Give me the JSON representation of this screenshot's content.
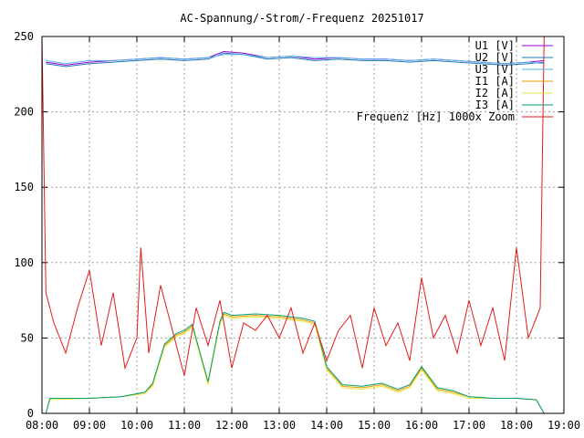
{
  "chart_data": {
    "type": "line",
    "title": "AC-Spannung/-Strom/-Frequenz 20251017",
    "xlabel": "",
    "ylabel": "",
    "xlim": [
      "08:00",
      "19:00"
    ],
    "ylim": [
      0,
      250
    ],
    "x_ticks": [
      "08:00",
      "09:00",
      "10:00",
      "11:00",
      "12:00",
      "13:00",
      "14:00",
      "15:00",
      "16:00",
      "17:00",
      "18:00",
      "19:00"
    ],
    "y_ticks": [
      0,
      50,
      100,
      150,
      200,
      250
    ],
    "grid": true,
    "legend_position": "top-right",
    "series": [
      {
        "name": "U1 [V]",
        "color": "#9400d3",
        "x": [
          "08:05",
          "08:30",
          "09:00",
          "09:30",
          "10:00",
          "10:30",
          "11:00",
          "11:30",
          "11:50",
          "12:15",
          "12:45",
          "13:15",
          "13:45",
          "14:15",
          "14:45",
          "15:15",
          "15:45",
          "16:15",
          "16:45",
          "17:15",
          "17:45",
          "18:15",
          "18:35"
        ],
        "values": [
          233,
          231,
          233,
          234,
          235,
          236,
          235,
          236,
          240,
          239,
          236,
          237,
          235,
          236,
          235,
          235,
          234,
          235,
          234,
          233,
          232,
          233,
          234
        ]
      },
      {
        "name": "U2 [V]",
        "color": "#1e78b4",
        "x": [
          "08:05",
          "08:30",
          "09:00",
          "09:30",
          "10:00",
          "10:30",
          "11:00",
          "11:30",
          "11:50",
          "12:15",
          "12:45",
          "13:15",
          "13:45",
          "14:15",
          "14:45",
          "15:15",
          "15:45",
          "16:15",
          "16:45",
          "17:15",
          "17:45",
          "18:15",
          "18:35"
        ],
        "values": [
          232,
          230,
          232,
          233,
          234,
          235,
          234,
          235,
          239,
          238,
          235,
          236,
          234,
          235,
          234,
          234,
          233,
          234,
          233,
          232,
          231,
          232,
          233
        ]
      },
      {
        "name": "U3 [V]",
        "color": "#56b4e9",
        "x": [
          "08:05",
          "08:30",
          "09:00",
          "09:30",
          "10:00",
          "10:30",
          "11:00",
          "11:30",
          "11:50",
          "12:15",
          "12:45",
          "13:15",
          "13:45",
          "14:15",
          "14:45",
          "15:15",
          "15:45",
          "16:15",
          "16:45",
          "17:15",
          "17:45",
          "18:15",
          "18:35"
        ],
        "values": [
          234,
          232,
          234,
          234,
          235,
          236,
          235,
          236,
          238,
          238,
          236,
          237,
          236,
          236,
          235,
          235,
          234,
          235,
          234,
          233,
          232,
          233,
          232
        ]
      },
      {
        "name": "I1 [A]",
        "color": "#e69f00",
        "x": [
          "08:05",
          "08:10",
          "09:00",
          "09:40",
          "10:10",
          "10:20",
          "10:35",
          "10:50",
          "11:00",
          "11:10",
          "11:30",
          "11:45",
          "11:50",
          "12:00",
          "12:30",
          "13:00",
          "13:30",
          "13:45",
          "14:00",
          "14:20",
          "14:45",
          "15:10",
          "15:30",
          "15:45",
          "16:00",
          "16:20",
          "16:40",
          "17:00",
          "17:30",
          "18:00",
          "18:25",
          "18:35"
        ],
        "values": [
          0,
          10,
          10,
          11,
          14,
          19,
          45,
          52,
          54,
          58,
          20,
          60,
          66,
          64,
          65,
          64,
          62,
          60,
          30,
          18,
          17,
          19,
          15,
          18,
          30,
          16,
          14,
          11,
          10,
          10,
          9,
          0
        ]
      },
      {
        "name": "I2 [A]",
        "color": "#f0e442",
        "x": [
          "08:05",
          "08:10",
          "09:00",
          "09:40",
          "10:10",
          "10:20",
          "10:35",
          "10:50",
          "11:00",
          "11:10",
          "11:30",
          "11:45",
          "11:50",
          "12:00",
          "12:30",
          "13:00",
          "13:30",
          "13:45",
          "14:00",
          "14:20",
          "14:45",
          "15:10",
          "15:30",
          "15:45",
          "16:00",
          "16:20",
          "16:40",
          "17:00",
          "17:30",
          "18:00",
          "18:25",
          "18:35"
        ],
        "values": [
          0,
          9,
          10,
          11,
          13,
          18,
          44,
          51,
          53,
          57,
          19,
          59,
          65,
          63,
          64,
          63,
          61,
          59,
          29,
          17,
          16,
          18,
          14,
          17,
          29,
          15,
          13,
          10,
          10,
          10,
          9,
          0
        ]
      },
      {
        "name": "I3 [A]",
        "color": "#009e73",
        "x": [
          "08:05",
          "08:10",
          "09:00",
          "09:40",
          "10:10",
          "10:20",
          "10:35",
          "10:50",
          "11:00",
          "11:10",
          "11:30",
          "11:45",
          "11:50",
          "12:00",
          "12:30",
          "13:00",
          "13:30",
          "13:45",
          "14:00",
          "14:20",
          "14:45",
          "15:10",
          "15:30",
          "15:45",
          "16:00",
          "16:20",
          "16:40",
          "17:00",
          "17:30",
          "18:00",
          "18:25",
          "18:35"
        ],
        "values": [
          0,
          10,
          10,
          11,
          14,
          20,
          46,
          53,
          55,
          59,
          21,
          61,
          67,
          65,
          66,
          65,
          63,
          61,
          31,
          19,
          18,
          20,
          16,
          19,
          31,
          17,
          15,
          11,
          10,
          10,
          9,
          0
        ]
      },
      {
        "name": "Frequenz [Hz] 1000x Zoom",
        "color": "#e41a1c",
        "x": [
          "08:00",
          "08:05",
          "08:15",
          "08:30",
          "08:45",
          "09:00",
          "09:15",
          "09:30",
          "09:45",
          "10:00",
          "10:05",
          "10:15",
          "10:30",
          "10:45",
          "11:00",
          "11:15",
          "11:30",
          "11:45",
          "12:00",
          "12:15",
          "12:30",
          "12:45",
          "13:00",
          "13:15",
          "13:30",
          "13:45",
          "14:00",
          "14:15",
          "14:30",
          "14:45",
          "15:00",
          "15:15",
          "15:30",
          "15:45",
          "16:00",
          "16:15",
          "16:30",
          "16:45",
          "17:00",
          "17:15",
          "17:30",
          "17:45",
          "18:00",
          "18:15",
          "18:30",
          "18:35"
        ],
        "values": [
          250,
          80,
          60,
          40,
          70,
          95,
          45,
          80,
          30,
          50,
          110,
          40,
          85,
          55,
          25,
          70,
          45,
          75,
          30,
          60,
          55,
          65,
          50,
          70,
          40,
          60,
          35,
          55,
          65,
          30,
          70,
          45,
          60,
          35,
          90,
          50,
          65,
          40,
          75,
          45,
          70,
          35,
          110,
          50,
          70,
          250
        ]
      }
    ]
  }
}
